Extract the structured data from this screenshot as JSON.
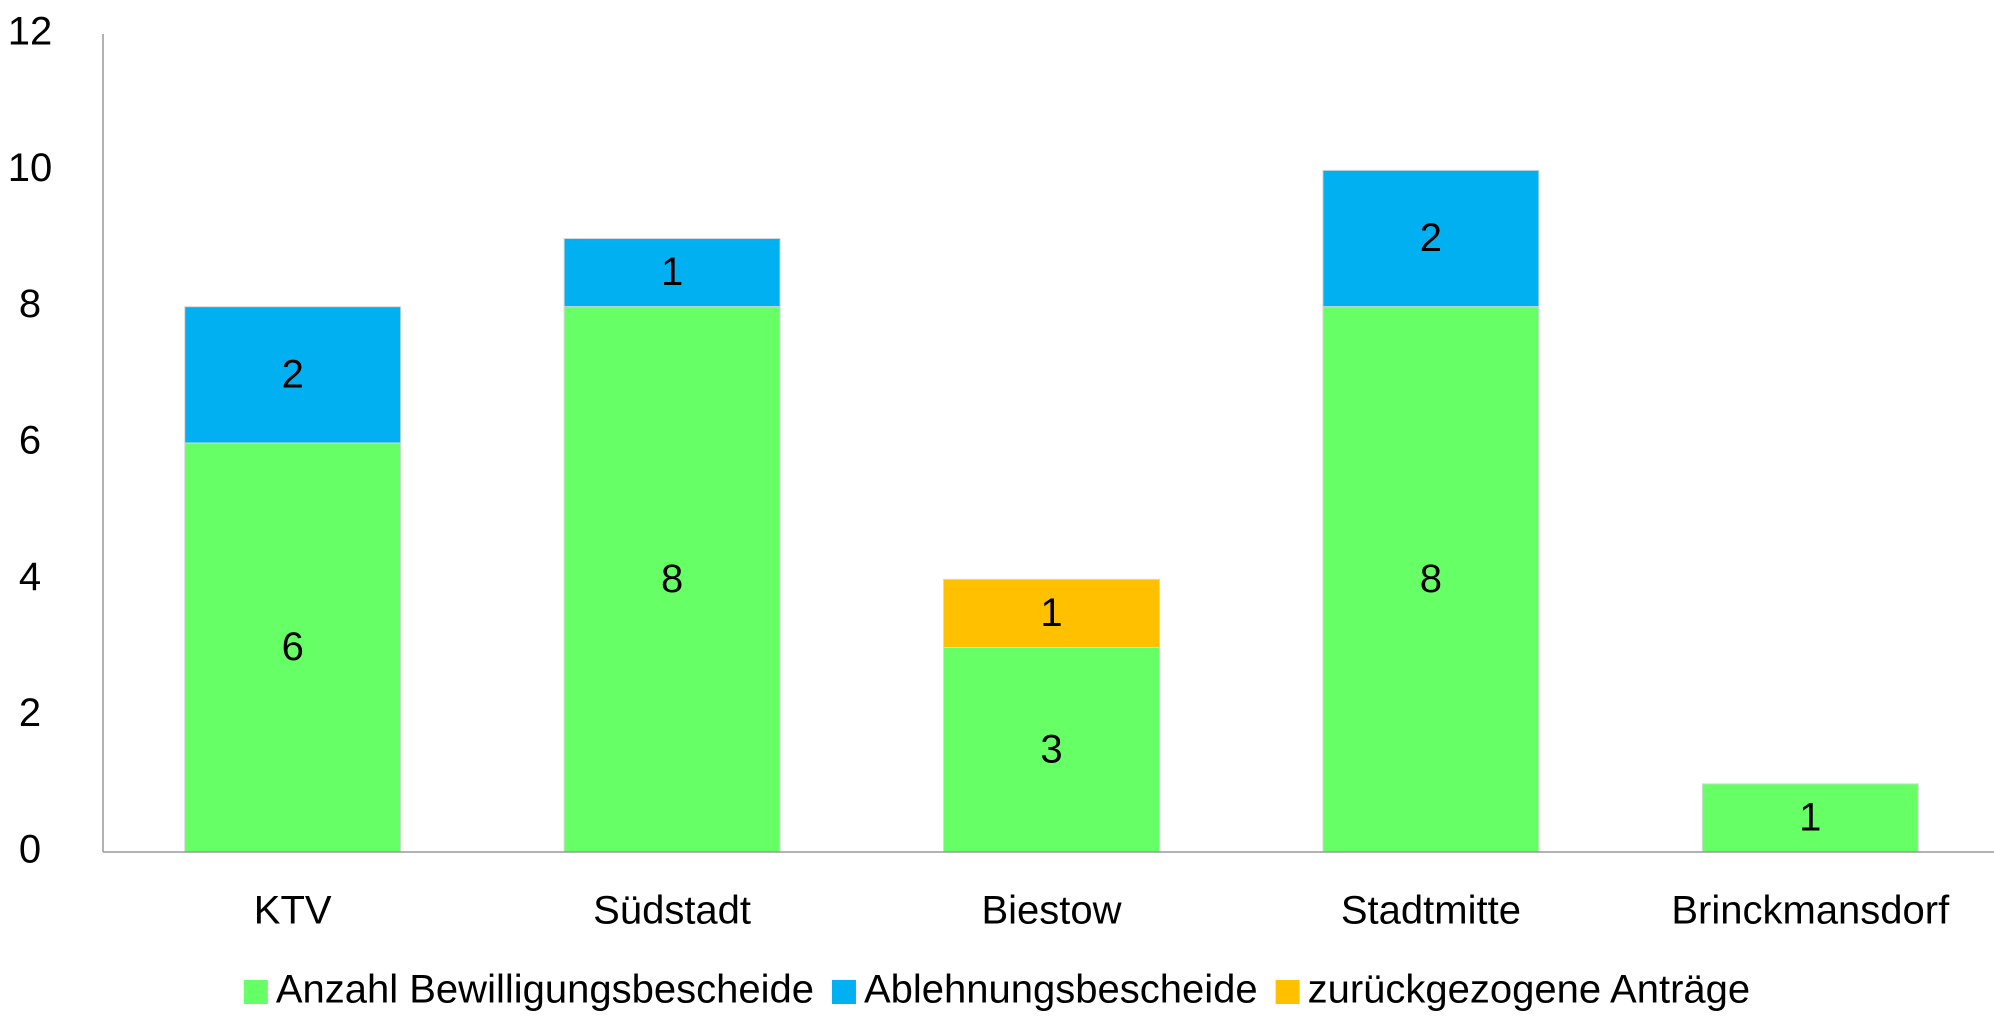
{
  "chart_data": {
    "type": "stacked_bar",
    "categories": [
      "KTV",
      "Südstadt",
      "Biestow",
      "Stadtmitte",
      "Brinckmansdorf"
    ],
    "series": [
      {
        "name": "Anzahl Bewilligungsbescheide",
        "color": "#66ff66",
        "values": [
          6,
          8,
          3,
          8,
          1
        ]
      },
      {
        "name": "Ablehnungsbescheide",
        "color": "#00b0f0",
        "values": [
          2,
          1,
          null,
          2,
          null
        ]
      },
      {
        "name": "zurückgezogene Anträge",
        "color": "#ffc000",
        "values": [
          null,
          null,
          1,
          null,
          null
        ]
      }
    ],
    "ylim": [
      0,
      12
    ],
    "yticks": [
      0,
      2,
      4,
      6,
      8,
      10,
      12
    ],
    "grid": false,
    "legend": "bottom"
  }
}
